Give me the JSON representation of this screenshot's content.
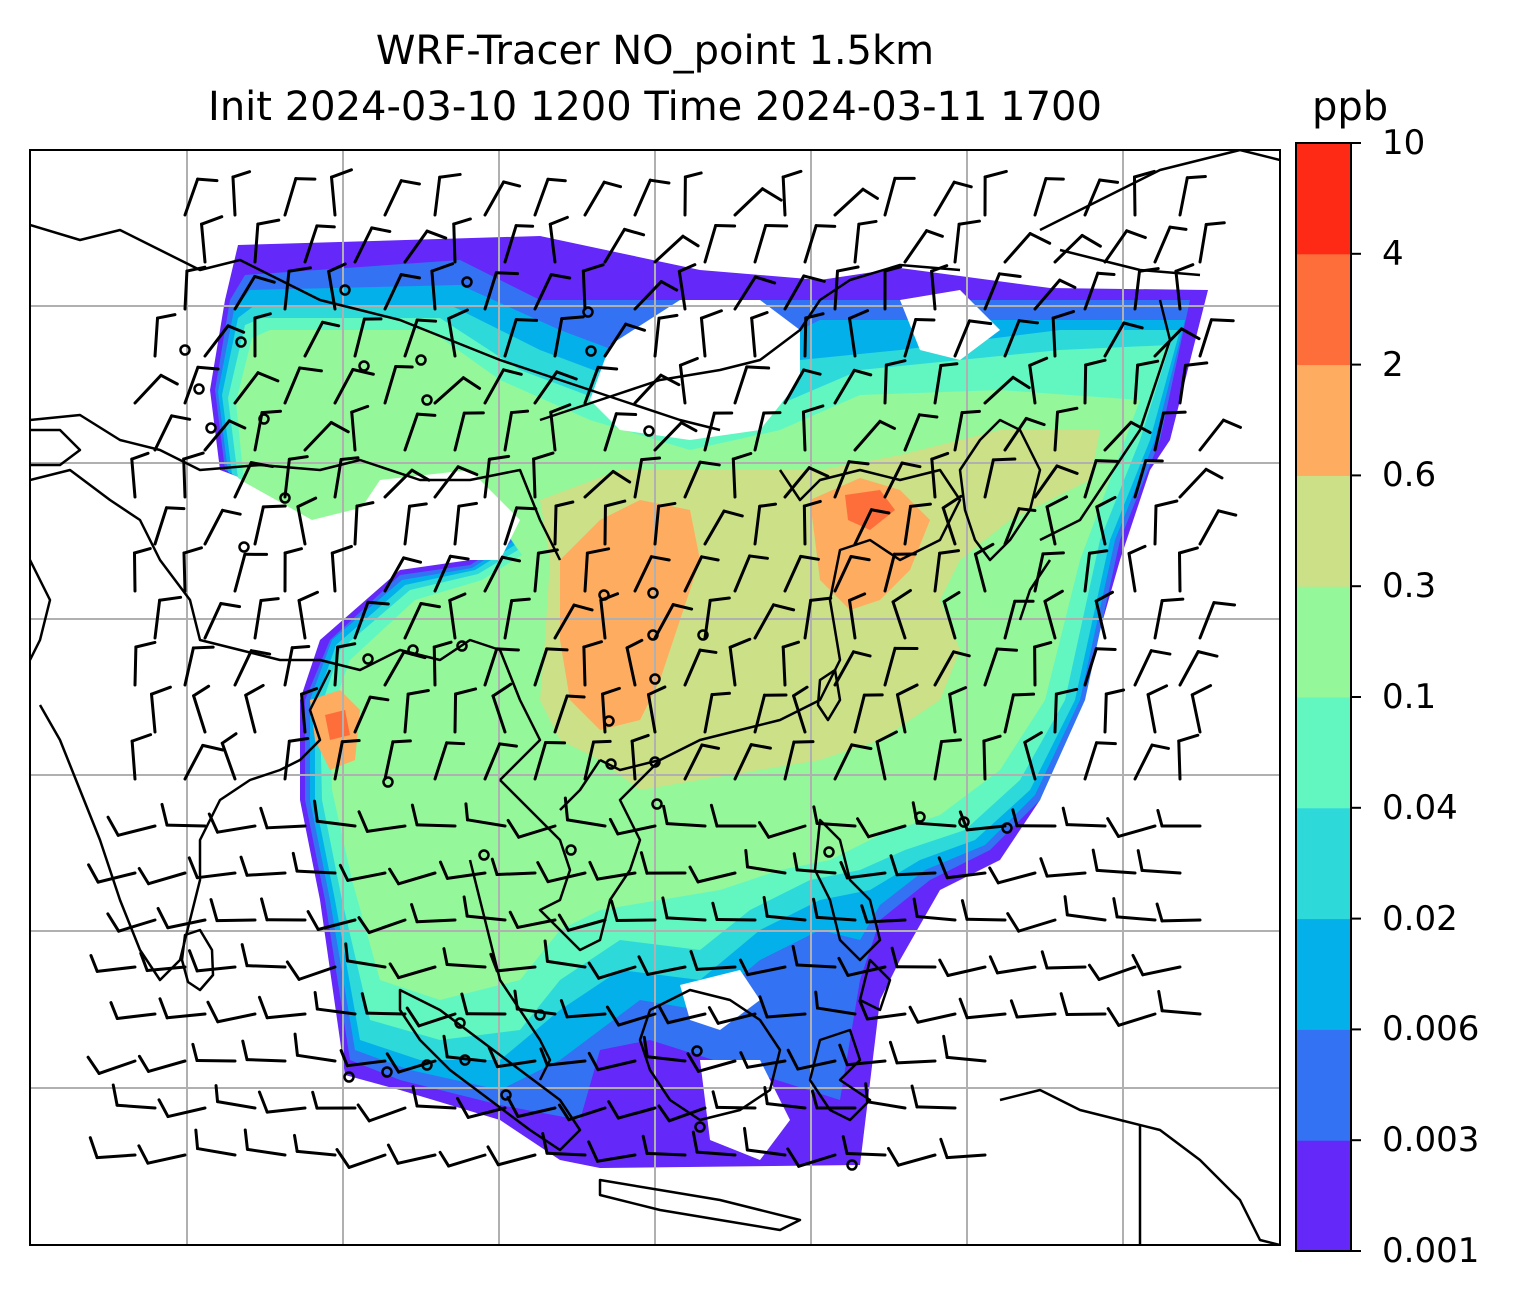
{
  "title": {
    "line1": "WRF-Tracer NO_point 1.5km",
    "line2": "Init 2024-03-10 1200 Time 2024-03-11 1700"
  },
  "colorbar": {
    "unit": "ppb",
    "levels": [
      "0.001",
      "0.003",
      "0.006",
      "0.02",
      "0.04",
      "0.1",
      "0.3",
      "0.6",
      "2",
      "4",
      "10"
    ],
    "colors": [
      "#6428f8",
      "#3472f4",
      "#04b0ea",
      "#2ed9d9",
      "#62f7c0",
      "#94f79a",
      "#cbe087",
      "#fdac60",
      "#fe6e3a",
      "#ff2a16"
    ]
  },
  "map": {
    "gridline_color": "#b0b0b0",
    "coastline_color": "#000000",
    "barb_color": "#000000"
  }
}
